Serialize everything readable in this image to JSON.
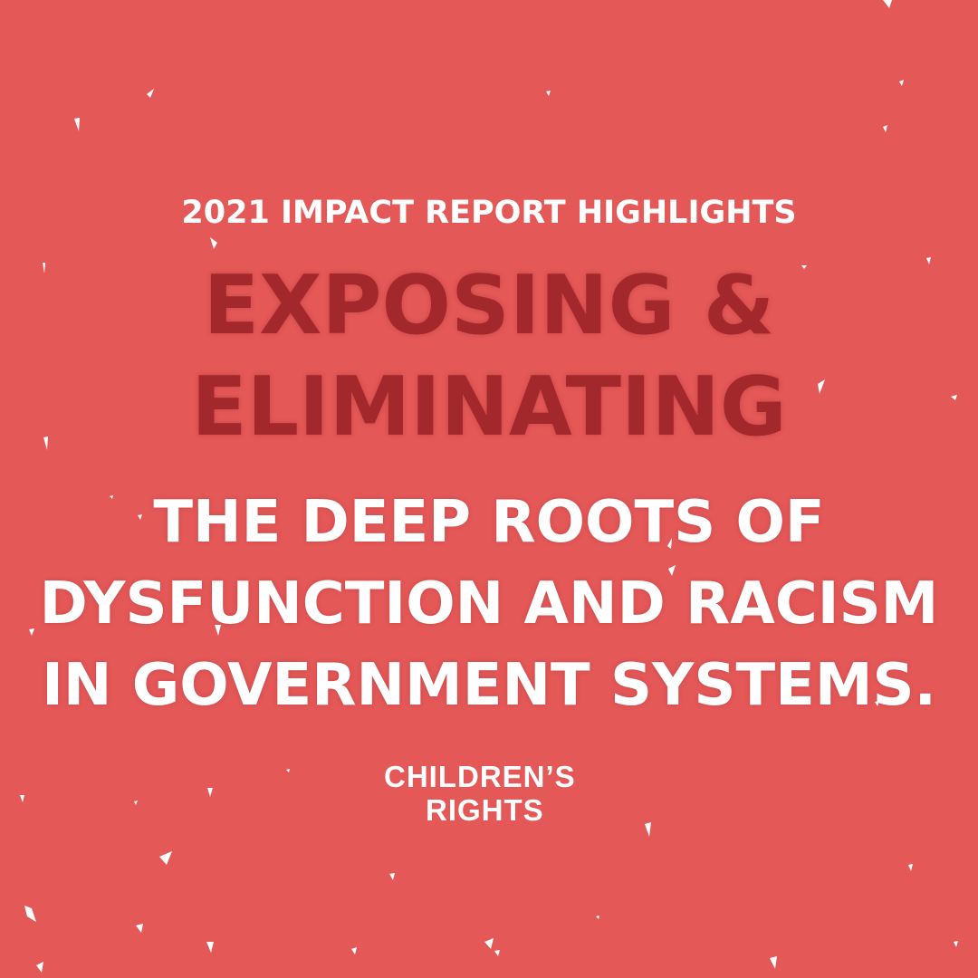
{
  "colors": {
    "background": "#e55858",
    "headline": "#a2282b",
    "text": "#ffffff"
  },
  "kicker": "2021 IMPACT REPORT HIGHLIGHTS",
  "headline": {
    "lines": [
      "EXPOSING &",
      "ELIMINATING"
    ]
  },
  "body": {
    "lines": [
      "THE DEEP ROOTS OF",
      "DYSFUNCTION AND RACISM",
      "IN GOVERNMENT SYSTEMS."
    ]
  },
  "logo": {
    "line1": "CHILDREN’S",
    "line2": "RIGHTS",
    "icon": "child-figure-icon"
  }
}
